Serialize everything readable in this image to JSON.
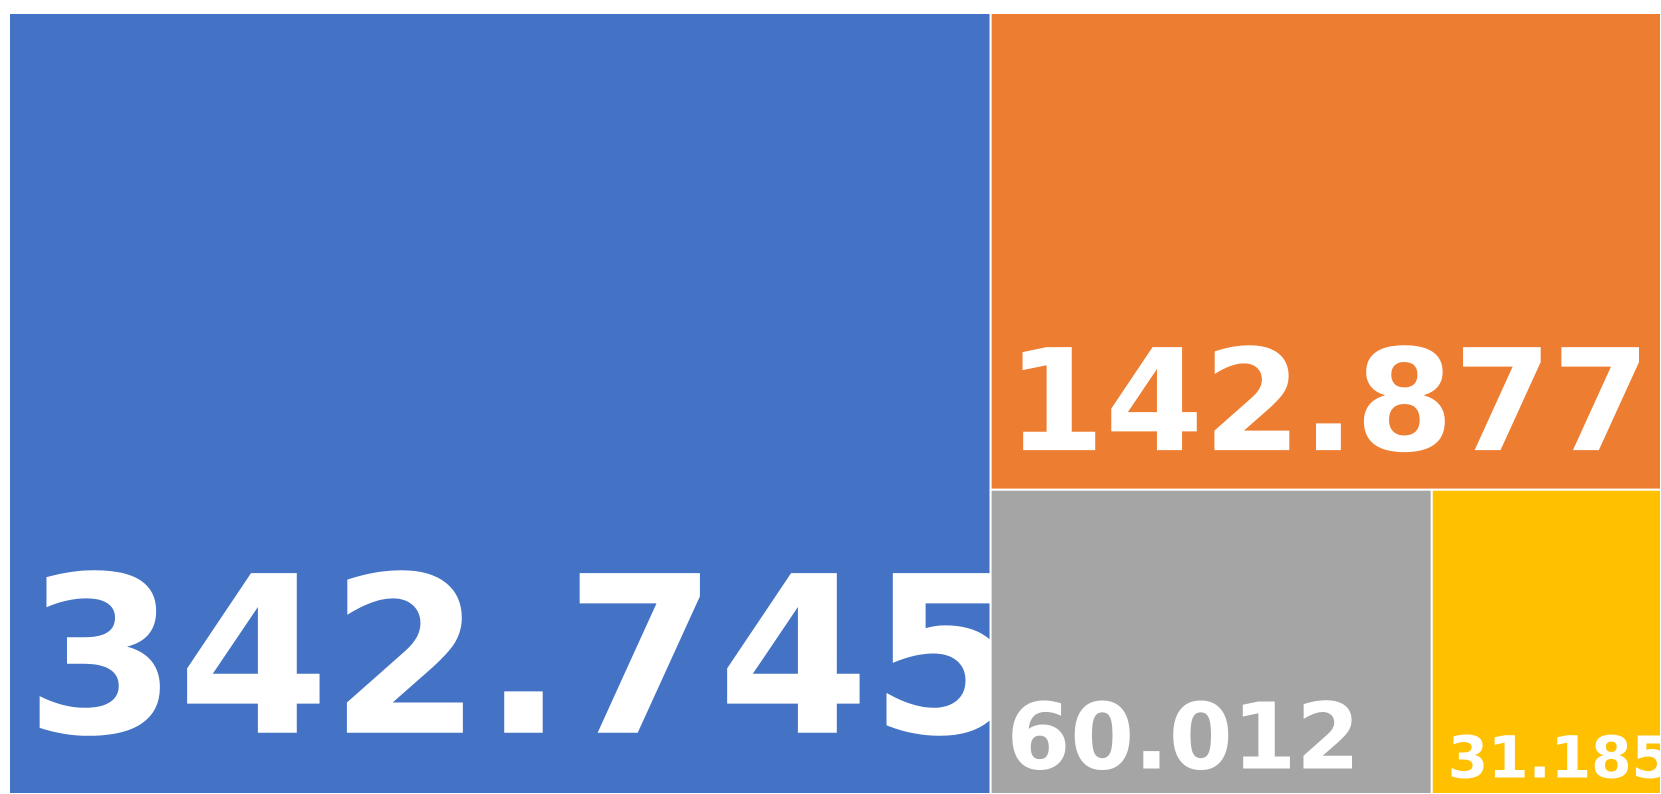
{
  "chart_data": {
    "type": "treemap",
    "values": [
      342.745,
      142.877,
      60.012,
      31.185
    ],
    "colors": [
      "#4472c4",
      "#ed7d31",
      "#a5a5a5",
      "#ffc000"
    ]
  }
}
